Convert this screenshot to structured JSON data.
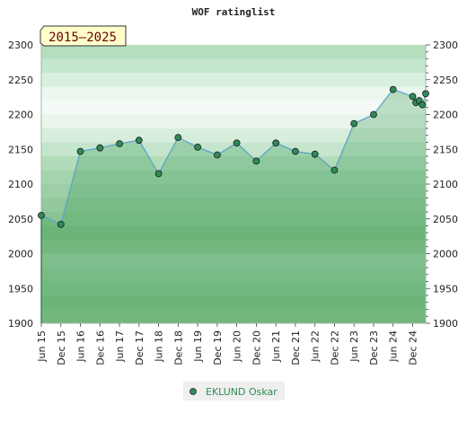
{
  "chart_data": {
    "type": "line",
    "title": "WOF ratinglist",
    "period_badge": "2015–2025",
    "ylim": [
      1900,
      2300
    ],
    "y_ticks": [
      "1900",
      "1950",
      "2000",
      "2050",
      "2100",
      "2150",
      "2200",
      "2250",
      "2300"
    ],
    "x_tick_labels": [
      "Jun 15",
      "Dec 15",
      "Jun 16",
      "Dec 16",
      "Jun 17",
      "Dec 17",
      "Jun 18",
      "Dec 18",
      "Jun 19",
      "Dec 19",
      "Jun 20",
      "Dec 20",
      "Jun 21",
      "Dec 21",
      "Jun 22",
      "Dec 22",
      "Jun 23",
      "Dec 23",
      "Jun 24",
      "Dec 24"
    ],
    "series": [
      {
        "name": "EKLUND Oskar",
        "color": "#2e8b57",
        "x": [
          "Jun 15",
          "Dec 15",
          "Jun 16",
          "Dec 16",
          "Jun 17",
          "Dec 17",
          "Jun 18",
          "Dec 18",
          "Jun 19",
          "Dec 19",
          "Jun 20",
          "Dec 20",
          "Jun 21",
          "Dec 21",
          "Jun 22",
          "Dec 22",
          "Jun 23",
          "Dec 23",
          "Jun 24",
          "Dec 24",
          "Jan 25",
          "Feb 25",
          "Mar 25",
          "Apr 25"
        ],
        "values": [
          2055,
          2042,
          2147,
          2152,
          2158,
          2163,
          2115,
          2167,
          2153,
          2142,
          2159,
          2133,
          2159,
          2147,
          2143,
          2120,
          2187,
          2200,
          2236,
          2226,
          2217,
          2220,
          2214,
          2230
        ]
      }
    ],
    "grid": true,
    "legend_position": "bottom-center"
  }
}
